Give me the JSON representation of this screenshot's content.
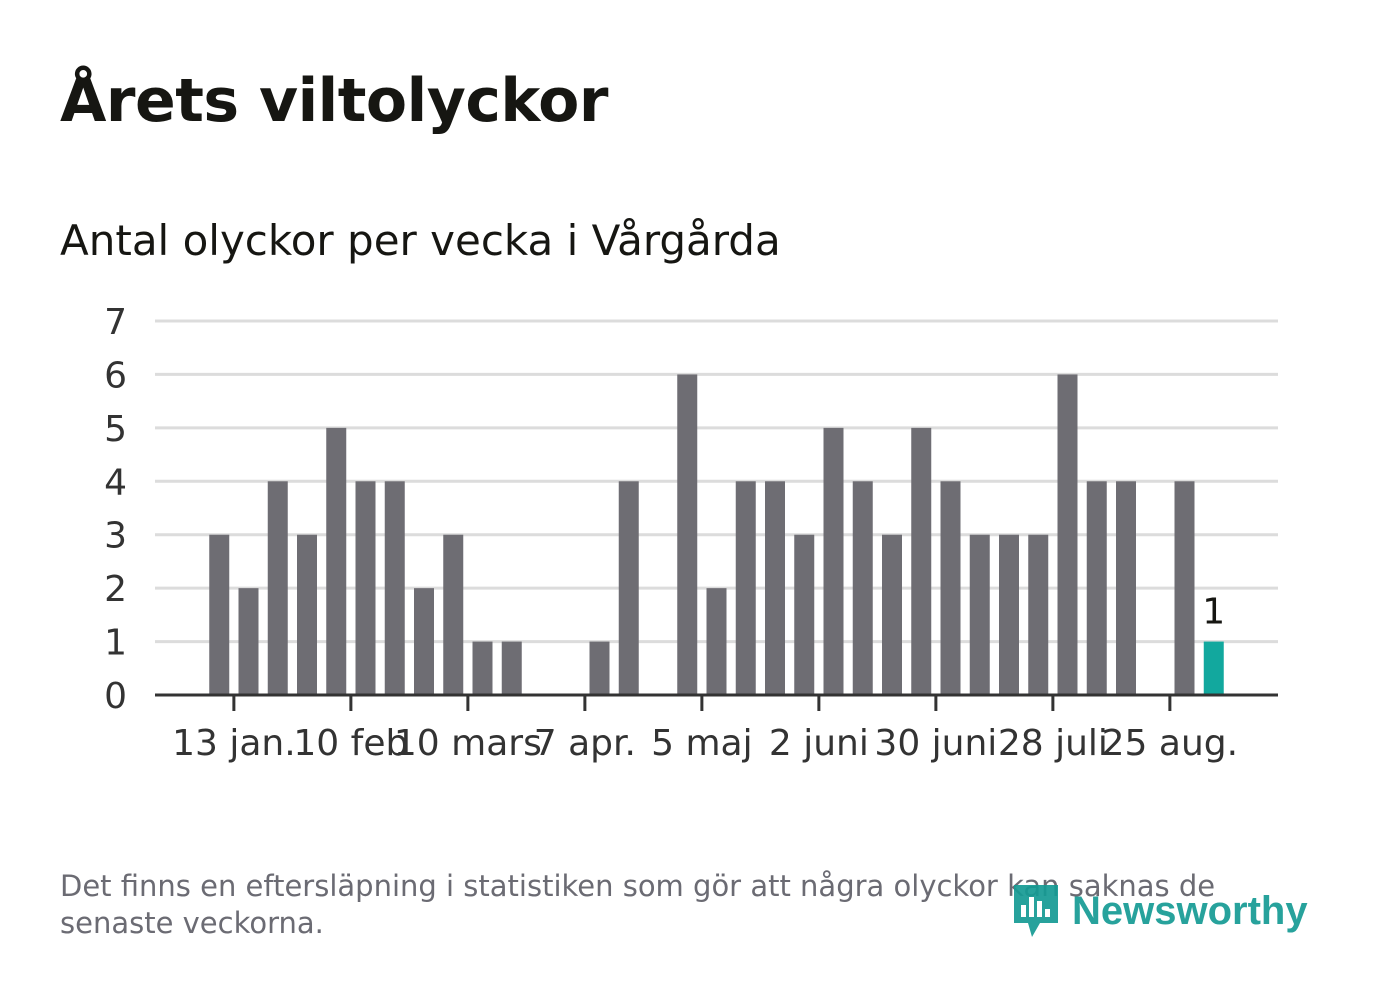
{
  "title": "Årets viltolyckor",
  "subtitle": "Antal olyckor per vecka i Vårgårda",
  "footnote": "Det finns en eftersläpning i statistiken som gör att några olyckor kan saknas de senaste veckorna.",
  "logo": {
    "text": "Newsworthy",
    "icon": "bar-chart-bubble-icon"
  },
  "colors": {
    "bar": "#6e6d73",
    "highlight": "#12a89e",
    "grid": "#dcdcdc",
    "axis": "#333333",
    "text": "#333333"
  },
  "chart_data": {
    "type": "bar",
    "ylim": [
      0,
      7
    ],
    "yticks": [
      "0",
      "1",
      "2",
      "3",
      "4",
      "5",
      "6",
      "7"
    ],
    "grid": true,
    "weeks": [
      1,
      2,
      3,
      4,
      5,
      6,
      7,
      8,
      9,
      10,
      11,
      12,
      13,
      14,
      15,
      16,
      17,
      18,
      19,
      20,
      21,
      22,
      23,
      24,
      25,
      26,
      27,
      28,
      29,
      30,
      31,
      32,
      33,
      34,
      35,
      36,
      37
    ],
    "values": [
      0,
      3,
      2,
      4,
      3,
      5,
      4,
      4,
      2,
      3,
      1,
      1,
      0,
      0,
      1,
      4,
      0,
      6,
      2,
      4,
      4,
      3,
      5,
      4,
      3,
      5,
      4,
      3,
      3,
      3,
      6,
      4,
      4,
      0,
      4,
      1,
      0
    ],
    "highlight_week": 36,
    "highlight_label": "1",
    "xticks": [
      {
        "week": 2.5,
        "label": "13 jan."
      },
      {
        "week": 6.5,
        "label": "10 feb"
      },
      {
        "week": 10.5,
        "label": "10 mars"
      },
      {
        "week": 14.5,
        "label": "7 apr."
      },
      {
        "week": 18.5,
        "label": "5 maj"
      },
      {
        "week": 22.5,
        "label": "2 juni"
      },
      {
        "week": 26.5,
        "label": "30 juni"
      },
      {
        "week": 30.5,
        "label": "28 juli"
      },
      {
        "week": 34.5,
        "label": "25 aug."
      }
    ]
  }
}
